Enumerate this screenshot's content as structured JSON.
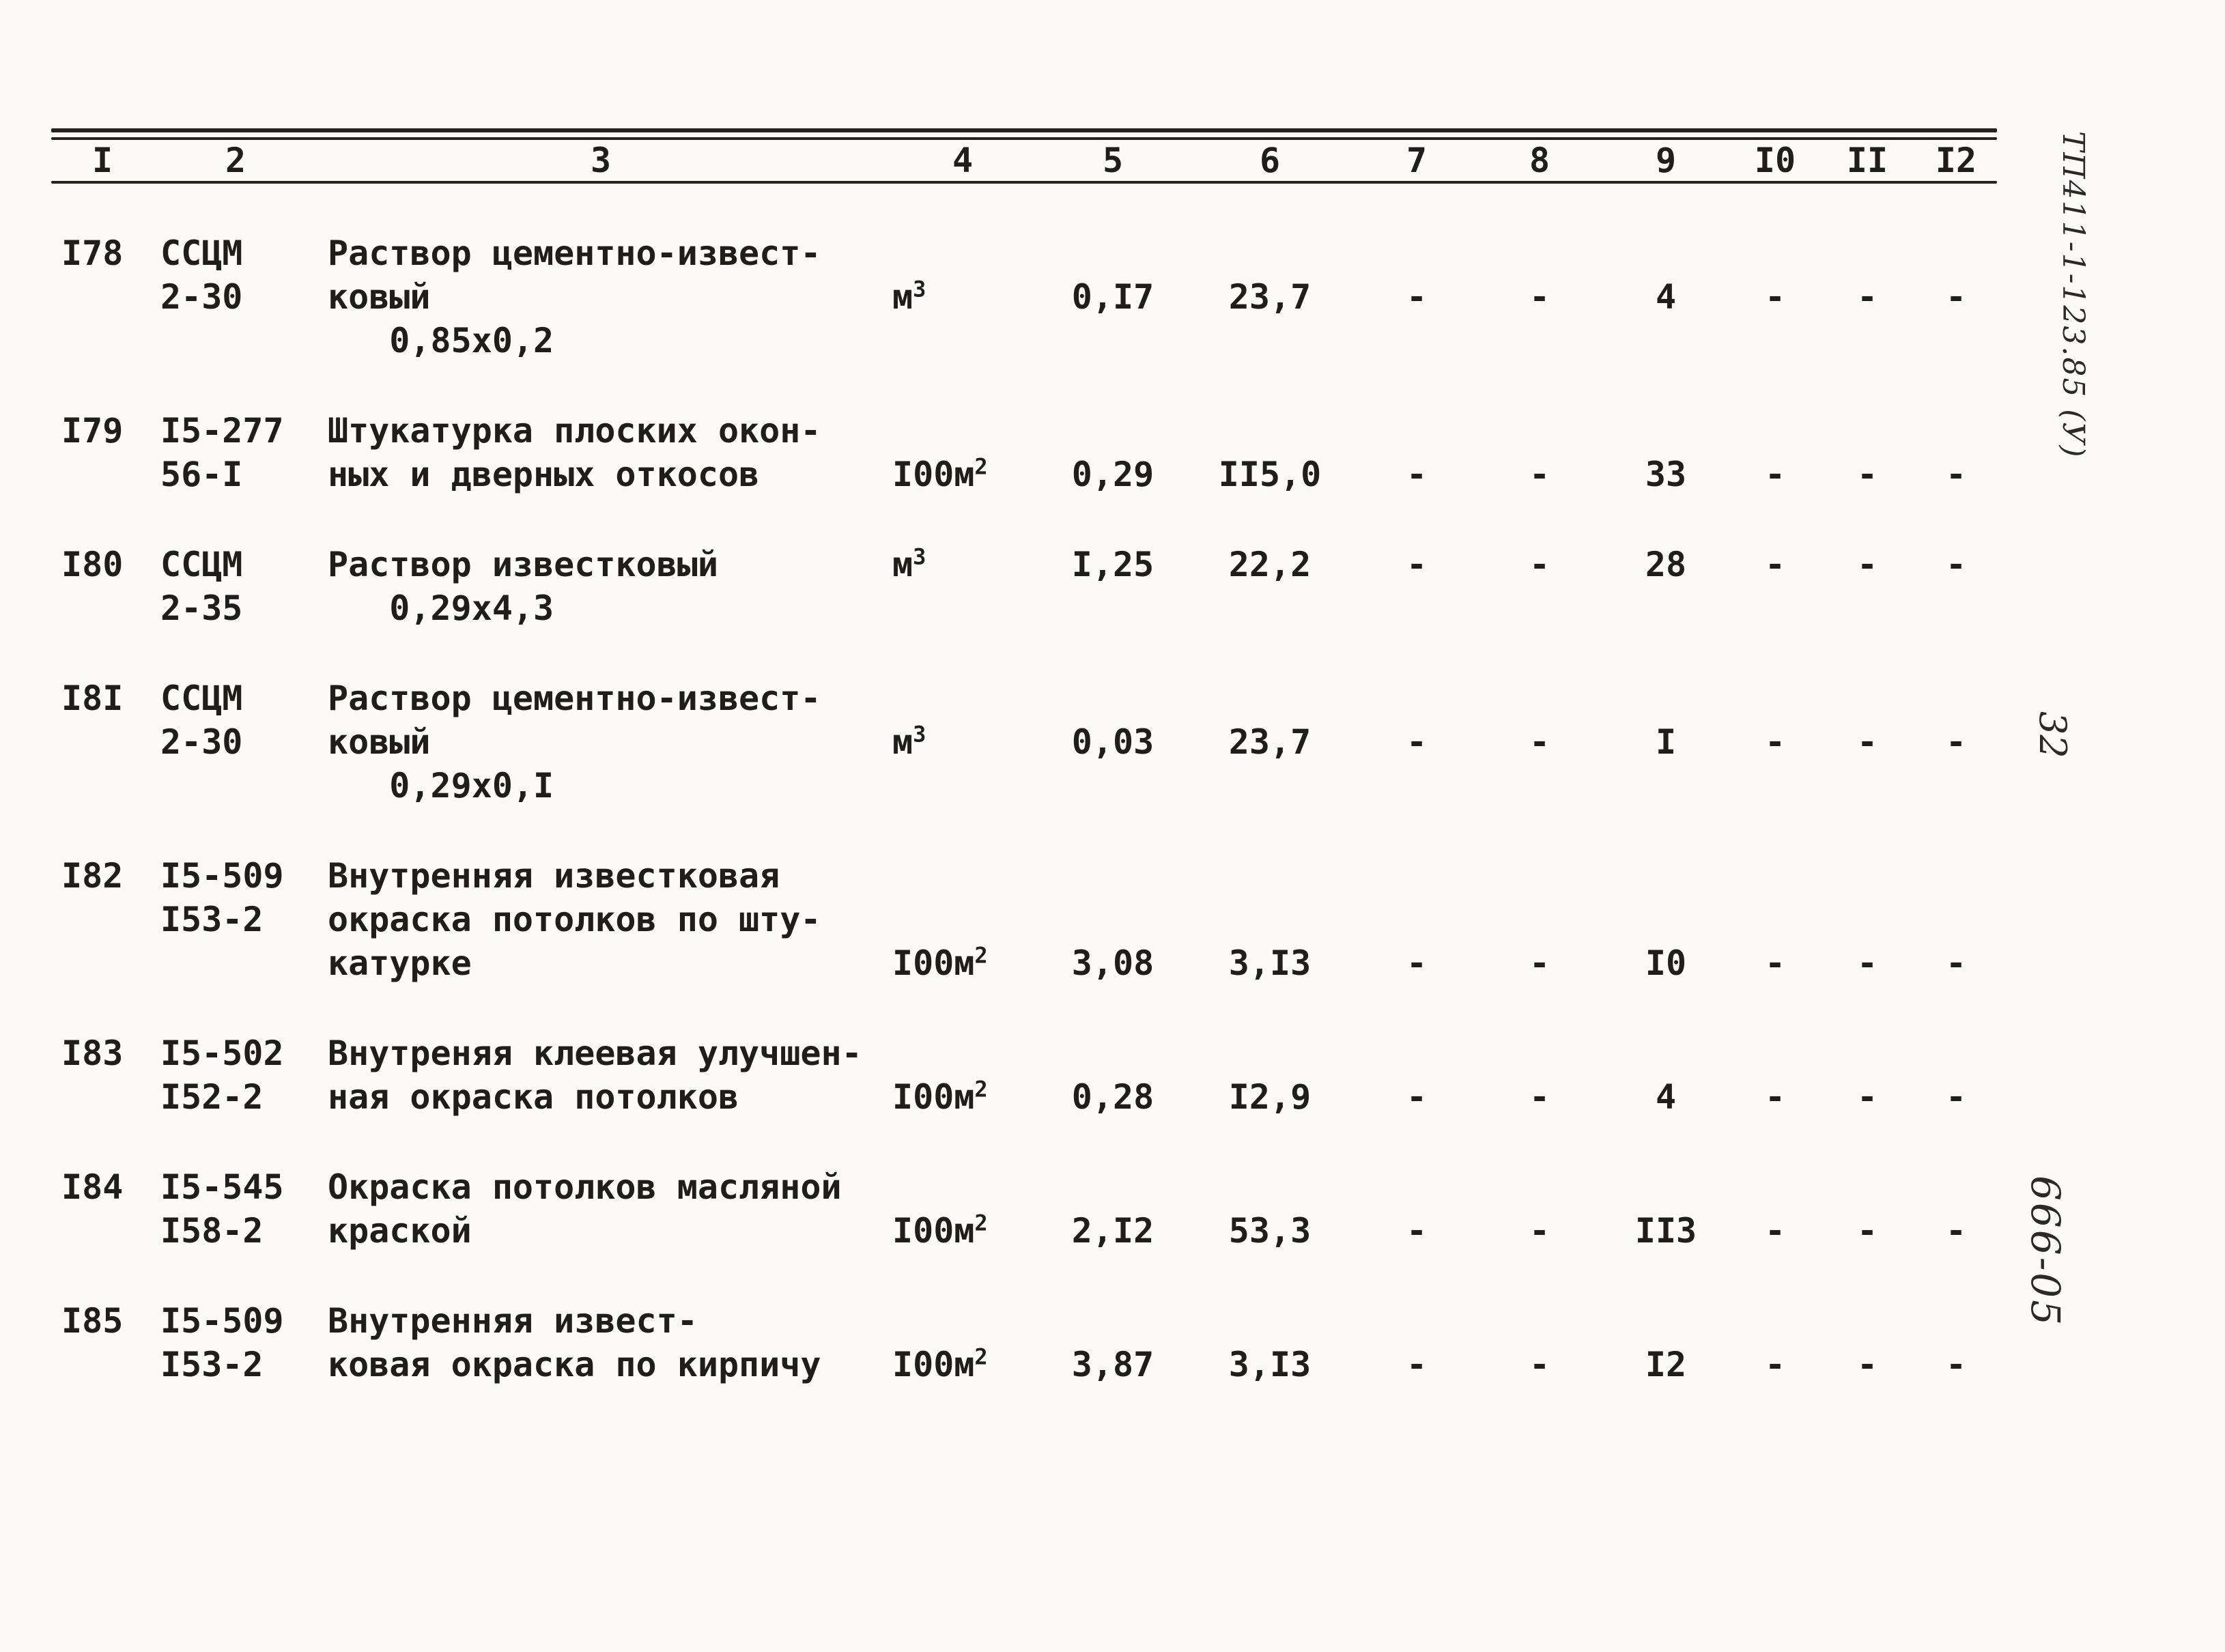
{
  "side_labels": {
    "doc_number": "ТП411-1-123.85 (У)",
    "page_number": "32",
    "series_code": "666-05"
  },
  "table": {
    "headers": [
      "I",
      "2",
      "3",
      "4",
      "5",
      "6",
      "7",
      "8",
      "9",
      "I0",
      "II",
      "I2"
    ],
    "rows": [
      {
        "num": "I78",
        "code": "ССЦМ\n2-30",
        "desc": "Раствор цементно-извест-\nковый\n   0,85х0,2",
        "unit": "м",
        "unit_sup": "3",
        "qty": "0,I7",
        "price": "23,7",
        "d7": "-",
        "d8": "-",
        "count": "4",
        "d10": "-",
        "d11": "-",
        "d12": "-"
      },
      {
        "num": "I79",
        "code": "I5-277\n56-I",
        "desc": "Штукатурка плоских окон-\nных и дверных откосов",
        "unit": "I00м",
        "unit_sup": "2",
        "qty": "0,29",
        "price": "II5,0",
        "d7": "-",
        "d8": "-",
        "count": "33",
        "d10": "-",
        "d11": "-",
        "d12": "-"
      },
      {
        "num": "I80",
        "code": "ССЦМ\n2-35",
        "desc": "Раствор известковый\n   0,29х4,3",
        "unit": "м",
        "unit_sup": "3",
        "qty": "I,25",
        "price": "22,2",
        "d7": "-",
        "d8": "-",
        "count": "28",
        "d10": "-",
        "d11": "-",
        "d12": "-"
      },
      {
        "num": "I8I",
        "code": "ССЦМ\n2-30",
        "desc": "Раствор цементно-извест-\nковый\n   0,29х0,I",
        "unit": "м",
        "unit_sup": "3",
        "qty": "0,03",
        "price": "23,7",
        "d7": "-",
        "d8": "-",
        "count": "I",
        "d10": "-",
        "d11": "-",
        "d12": "-"
      },
      {
        "num": "I82",
        "code": "I5-509\nI53-2",
        "desc": "Внутренняя известковая\nокраска потолков по шту-\nкатурке",
        "unit": "I00м",
        "unit_sup": "2",
        "qty": "3,08",
        "price": "3,I3",
        "d7": "-",
        "d8": "-",
        "count": "I0",
        "d10": "-",
        "d11": "-",
        "d12": "-"
      },
      {
        "num": "I83",
        "code": "I5-502\nI52-2",
        "desc": "Внутреняя клеевая улучшен-\nная окраска потолков",
        "unit": "I00м",
        "unit_sup": "2",
        "qty": "0,28",
        "price": "I2,9",
        "d7": "-",
        "d8": "-",
        "count": "4",
        "d10": "-",
        "d11": "-",
        "d12": "-"
      },
      {
        "num": "I84",
        "code": "I5-545\nI58-2",
        "desc": "Окраска потолков масляной\nкраской",
        "unit": "I00м",
        "unit_sup": "2",
        "qty": "2,I2",
        "price": "53,3",
        "d7": "-",
        "d8": "-",
        "count": "II3",
        "d10": "-",
        "d11": "-",
        "d12": "-"
      },
      {
        "num": "I85",
        "code": "I5-509\nI53-2",
        "desc": "Внутренняя извест-\nковая окраска по кирпичу",
        "unit": "I00м",
        "unit_sup": "2",
        "qty": "3,87",
        "price": "3,I3",
        "d7": "-",
        "d8": "-",
        "count": "I2",
        "d10": "-",
        "d11": "-",
        "d12": "-"
      }
    ]
  }
}
